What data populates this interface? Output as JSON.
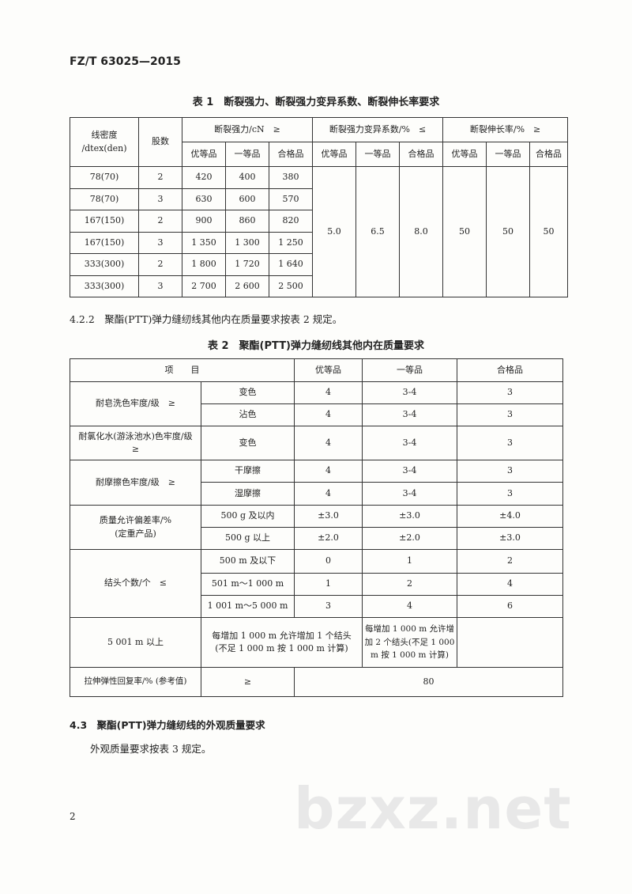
{
  "header": {
    "standard_no": "FZ/T 63025—2015"
  },
  "table1": {
    "caption": "表 1　断裂强力、断裂强力变异系数、断裂伸长率要求",
    "head": {
      "density": "线密度\n/dtex(den)",
      "plies": "股数",
      "strength": "断裂强力/cN　≥",
      "cv": "断裂强力变异系数/%　≤",
      "elong": "断裂伸长率/%　≥",
      "grades": [
        "优等品",
        "一等品",
        "合格品"
      ]
    },
    "rows": [
      [
        "78(70)",
        "2",
        "420",
        "400",
        "380"
      ],
      [
        "78(70)",
        "3",
        "630",
        "600",
        "570"
      ],
      [
        "167(150)",
        "2",
        "900",
        "860",
        "820"
      ],
      [
        "167(150)",
        "3",
        "1 350",
        "1 300",
        "1 250"
      ],
      [
        "333(300)",
        "2",
        "1 800",
        "1 720",
        "1 640"
      ],
      [
        "333(300)",
        "3",
        "2 700",
        "2 600",
        "2 500"
      ]
    ],
    "cv_values": [
      "5.0",
      "6.5",
      "8.0"
    ],
    "elong_values": [
      "50",
      "50",
      "50"
    ]
  },
  "clause_422": "4.2.2　聚酯(PTT)弹力缝纫线其他内在质量要求按表 2 规定。",
  "table2": {
    "caption": "表 2　聚酯(PTT)弹力缝纫线其他内在质量要求",
    "head": [
      "项　　目",
      "优等品",
      "一等品",
      "合格品"
    ],
    "soap": {
      "label": "耐皂洗色牢度/级　≥",
      "rows": [
        [
          "变色",
          "4",
          "3-4",
          "3"
        ],
        [
          "沾色",
          "4",
          "3-4",
          "3"
        ]
      ]
    },
    "chlorine": {
      "label": "耐氯化水(游泳池水)色牢度/级　≥",
      "rows": [
        [
          "变色",
          "4",
          "3-4",
          "3"
        ]
      ]
    },
    "rub": {
      "label": "耐摩擦色牢度/级　≥",
      "rows": [
        [
          "干摩擦",
          "4",
          "3-4",
          "3"
        ],
        [
          "湿摩擦",
          "4",
          "3-4",
          "3"
        ]
      ]
    },
    "mass": {
      "label": "质量允许偏差率/%\n(定重产品)",
      "rows": [
        [
          "500 g 及以内",
          "±3.0",
          "±3.0",
          "±4.0"
        ],
        [
          "500 g 以上",
          "±2.0",
          "±2.0",
          "±3.0"
        ]
      ]
    },
    "knots": {
      "label": "结头个数/个　≤",
      "rows": [
        [
          "500 m 及以下",
          "0",
          "1",
          "2"
        ],
        [
          "501 m～1 000 m",
          "1",
          "2",
          "4"
        ],
        [
          "1 001 m～5 000 m",
          "3",
          "4",
          "6"
        ]
      ],
      "last": {
        "sub": "5 001 m 以上",
        "merged": "每增加 1 000 m 允许增加 1 个结头\n(不足 1 000 m 按 1 000 m 计算)",
        "pass": "每增加 1 000 m 允许增加 2 个结头(不足 1 000 m 按 1 000 m 计算)"
      }
    },
    "elastic": {
      "label": "拉伸弹性回复率/% (参考值)",
      "op": "≥",
      "value": "80"
    }
  },
  "section_43": {
    "title": "4.3　聚酯(PTT)弹力缝纫线的外观质量要求",
    "text": "外观质量要求按表 3 规定。"
  },
  "page_number": "2",
  "watermark": "bzxz.net"
}
